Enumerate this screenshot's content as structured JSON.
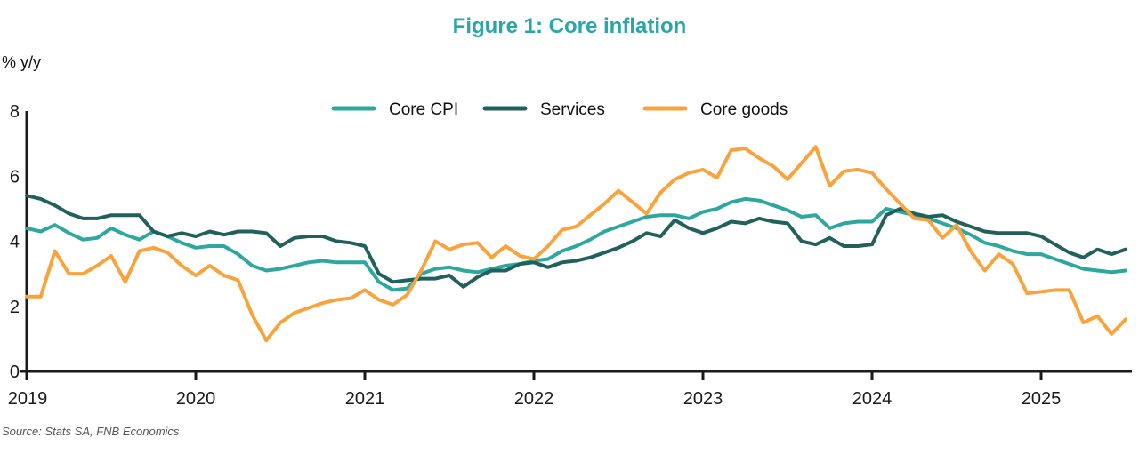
{
  "title": "Figure 1: Core inflation",
  "y_axis_unit_label": "% y/y",
  "source": "Source: Stats SA, FNB Economics",
  "colors": {
    "title": "#29a6a9",
    "core_cpi": "#2ea79f",
    "services": "#21605c",
    "core_goods": "#f8a33c",
    "axis": "#1a1a1a"
  },
  "chart_data": {
    "type": "line",
    "title": "Figure 1: Core inflation",
    "ylabel": "% y/y",
    "ylim": [
      0,
      8
    ],
    "y_ticks": [
      0,
      2,
      4,
      6,
      8
    ],
    "x_tick_labels": [
      "2019",
      "2020",
      "2021",
      "2022",
      "2023",
      "2024",
      "2025"
    ],
    "frequency": "monthly",
    "x_start": "2019-01",
    "x_end": "2025-07",
    "grid": false,
    "legend_position": "top-center",
    "series": [
      {
        "name": "Core CPI",
        "color": "#2ea79f",
        "values": [
          4.4,
          4.3,
          4.5,
          4.25,
          4.05,
          4.1,
          4.4,
          4.2,
          4.05,
          4.3,
          4.15,
          3.95,
          3.8,
          3.85,
          3.85,
          3.6,
          3.25,
          3.1,
          3.15,
          3.25,
          3.35,
          3.4,
          3.35,
          3.35,
          3.35,
          2.75,
          2.5,
          2.55,
          3.0,
          3.15,
          3.2,
          3.1,
          3.05,
          3.15,
          3.25,
          3.3,
          3.4,
          3.45,
          3.7,
          3.85,
          4.05,
          4.3,
          4.45,
          4.6,
          4.75,
          4.8,
          4.8,
          4.7,
          4.9,
          5.0,
          5.2,
          5.3,
          5.25,
          5.1,
          4.95,
          4.75,
          4.8,
          4.4,
          4.55,
          4.6,
          4.6,
          5.0,
          4.9,
          4.8,
          4.7,
          4.55,
          4.4,
          4.2,
          3.95,
          3.85,
          3.7,
          3.6,
          3.6,
          3.45,
          3.3,
          3.15,
          3.1,
          3.05,
          3.1
        ]
      },
      {
        "name": "Services",
        "color": "#21605c",
        "values": [
          5.4,
          5.3,
          5.1,
          4.85,
          4.7,
          4.7,
          4.8,
          4.8,
          4.8,
          4.3,
          4.15,
          4.25,
          4.15,
          4.3,
          4.2,
          4.3,
          4.3,
          4.25,
          3.85,
          4.1,
          4.15,
          4.15,
          4.0,
          3.95,
          3.85,
          3.0,
          2.75,
          2.8,
          2.85,
          2.85,
          2.95,
          2.6,
          2.9,
          3.1,
          3.1,
          3.3,
          3.35,
          3.2,
          3.35,
          3.4,
          3.5,
          3.65,
          3.8,
          4.0,
          4.25,
          4.15,
          4.65,
          4.4,
          4.25,
          4.4,
          4.6,
          4.55,
          4.7,
          4.6,
          4.55,
          4.0,
          3.9,
          4.1,
          3.85,
          3.85,
          3.9,
          4.8,
          5.0,
          4.85,
          4.75,
          4.8,
          4.6,
          4.45,
          4.3,
          4.25,
          4.25,
          4.25,
          4.15,
          3.9,
          3.65,
          3.5,
          3.75,
          3.6,
          3.75
        ]
      },
      {
        "name": "Core goods",
        "color": "#f8a33c",
        "values": [
          2.3,
          2.3,
          3.7,
          3.0,
          3.0,
          3.25,
          3.55,
          2.75,
          3.7,
          3.8,
          3.65,
          3.25,
          2.95,
          3.25,
          2.95,
          2.8,
          1.75,
          0.95,
          1.5,
          1.8,
          1.95,
          2.1,
          2.2,
          2.25,
          2.5,
          2.2,
          2.05,
          2.35,
          3.1,
          4.0,
          3.75,
          3.9,
          3.95,
          3.5,
          3.85,
          3.55,
          3.45,
          3.85,
          4.35,
          4.45,
          4.8,
          5.15,
          5.55,
          5.2,
          4.85,
          5.5,
          5.9,
          6.1,
          6.2,
          5.95,
          6.8,
          6.85,
          6.55,
          6.3,
          5.9,
          6.4,
          6.9,
          5.7,
          6.15,
          6.2,
          6.1,
          5.6,
          5.15,
          4.7,
          4.65,
          4.1,
          4.5,
          3.7,
          3.1,
          3.6,
          3.3,
          2.4,
          2.45,
          2.5,
          2.5,
          1.5,
          1.7,
          1.15,
          1.6
        ]
      }
    ],
    "source": "Source: Stats SA, FNB Economics"
  }
}
